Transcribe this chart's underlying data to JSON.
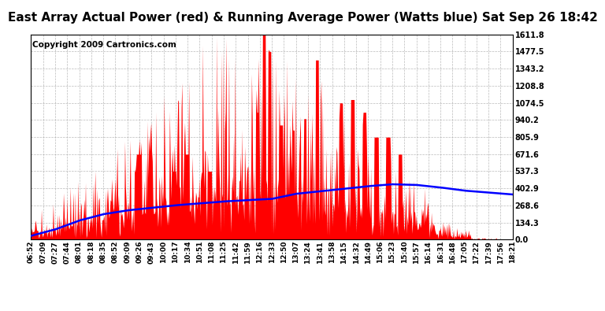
{
  "title": "East Array Actual Power (red) & Running Average Power (Watts blue) Sat Sep 26 18:42",
  "copyright": "Copyright 2009 Cartronics.com",
  "yticks": [
    0.0,
    134.3,
    268.6,
    402.9,
    537.3,
    671.6,
    805.9,
    940.2,
    1074.5,
    1208.8,
    1343.2,
    1477.5,
    1611.8
  ],
  "ymax": 1611.8,
  "ymin": 0.0,
  "xtick_labels": [
    "06:52",
    "07:09",
    "07:27",
    "07:44",
    "08:01",
    "08:18",
    "08:35",
    "08:52",
    "09:09",
    "09:26",
    "09:43",
    "10:00",
    "10:17",
    "10:34",
    "10:51",
    "11:08",
    "11:25",
    "11:42",
    "11:59",
    "12:16",
    "12:33",
    "12:50",
    "13:07",
    "13:24",
    "13:41",
    "13:58",
    "14:15",
    "14:32",
    "14:49",
    "15:06",
    "15:23",
    "15:40",
    "15:57",
    "16:14",
    "16:31",
    "16:48",
    "17:05",
    "17:22",
    "17:39",
    "17:56",
    "18:21"
  ],
  "n_xticks": 41,
  "red_area_color": "#FF0000",
  "blue_line_color": "#0000FF",
  "bg_color": "#FFFFFF",
  "grid_color": "#AAAAAA",
  "title_fontsize": 11,
  "copyright_fontsize": 7.5,
  "tick_fontsize": 7,
  "label_fontsize": 6.5
}
